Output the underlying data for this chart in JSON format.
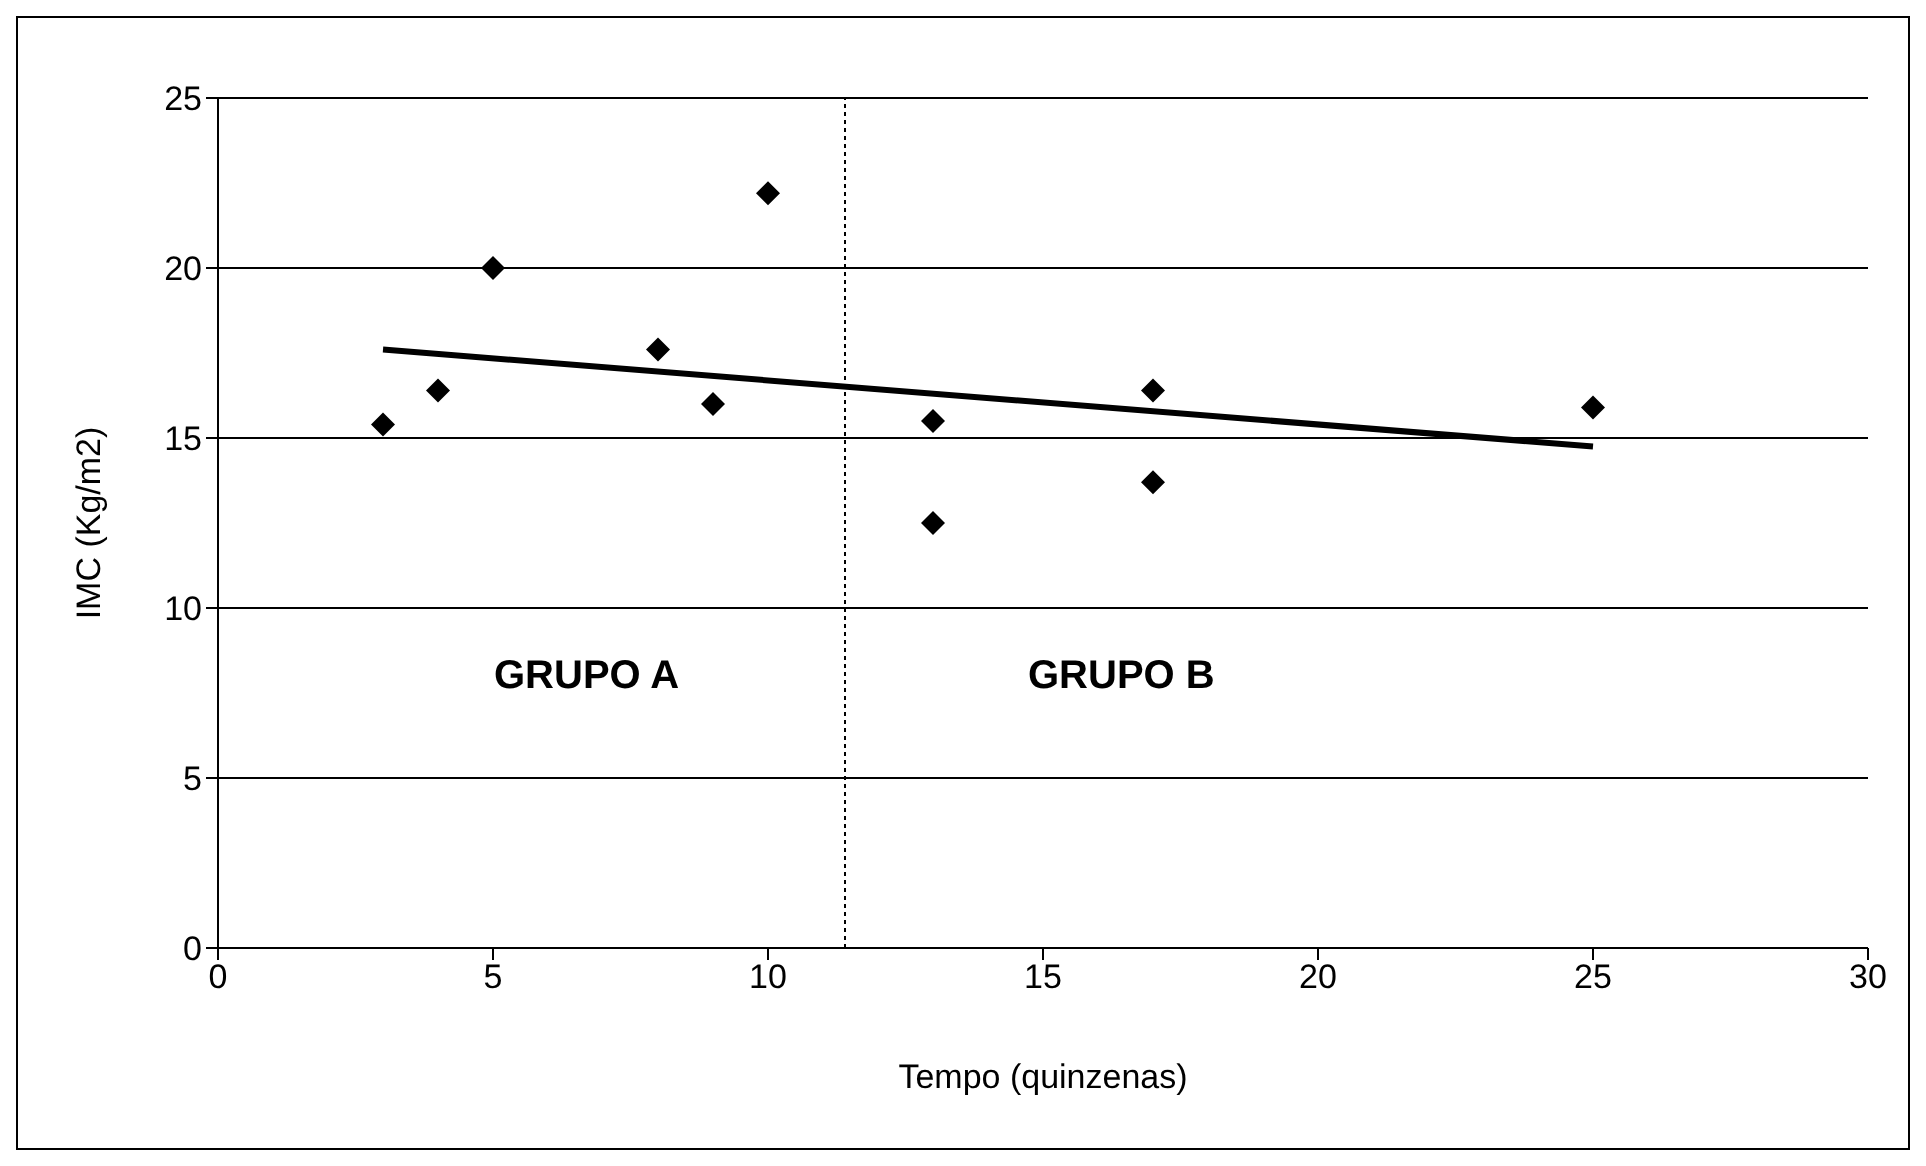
{
  "chart_data": {
    "type": "scatter",
    "xlabel": "Tempo (quinzenas)",
    "ylabel": "IMC (Kg/m2)",
    "x": [
      3,
      4,
      5,
      8,
      9,
      10,
      13,
      13,
      17,
      17,
      25
    ],
    "series": [
      {
        "color": "#000000",
        "marker": "diamond",
        "values": [
          15.4,
          16.4,
          20.0,
          17.6,
          16.0,
          22.2,
          15.5,
          12.5,
          16.4,
          13.7,
          15.9
        ]
      },
      {
        "type": "line",
        "color": "#000000",
        "marker": "none",
        "x": [
          3,
          25
        ],
        "values": [
          17.6,
          14.75
        ]
      }
    ],
    "xlim": [
      0,
      30
    ],
    "xticks": [
      0,
      5,
      10,
      15,
      20,
      25,
      30
    ],
    "ylim": [
      0,
      25
    ],
    "yticks": [
      0,
      5,
      10,
      15,
      20,
      25
    ],
    "grid": "y",
    "legend": false,
    "ref_lines": [
      {
        "axis": "x",
        "value": 11.4,
        "line_style": "dotted",
        "color": "#000000"
      }
    ],
    "annotations": [
      "GRUPO A",
      "GRUPO B"
    ]
  }
}
